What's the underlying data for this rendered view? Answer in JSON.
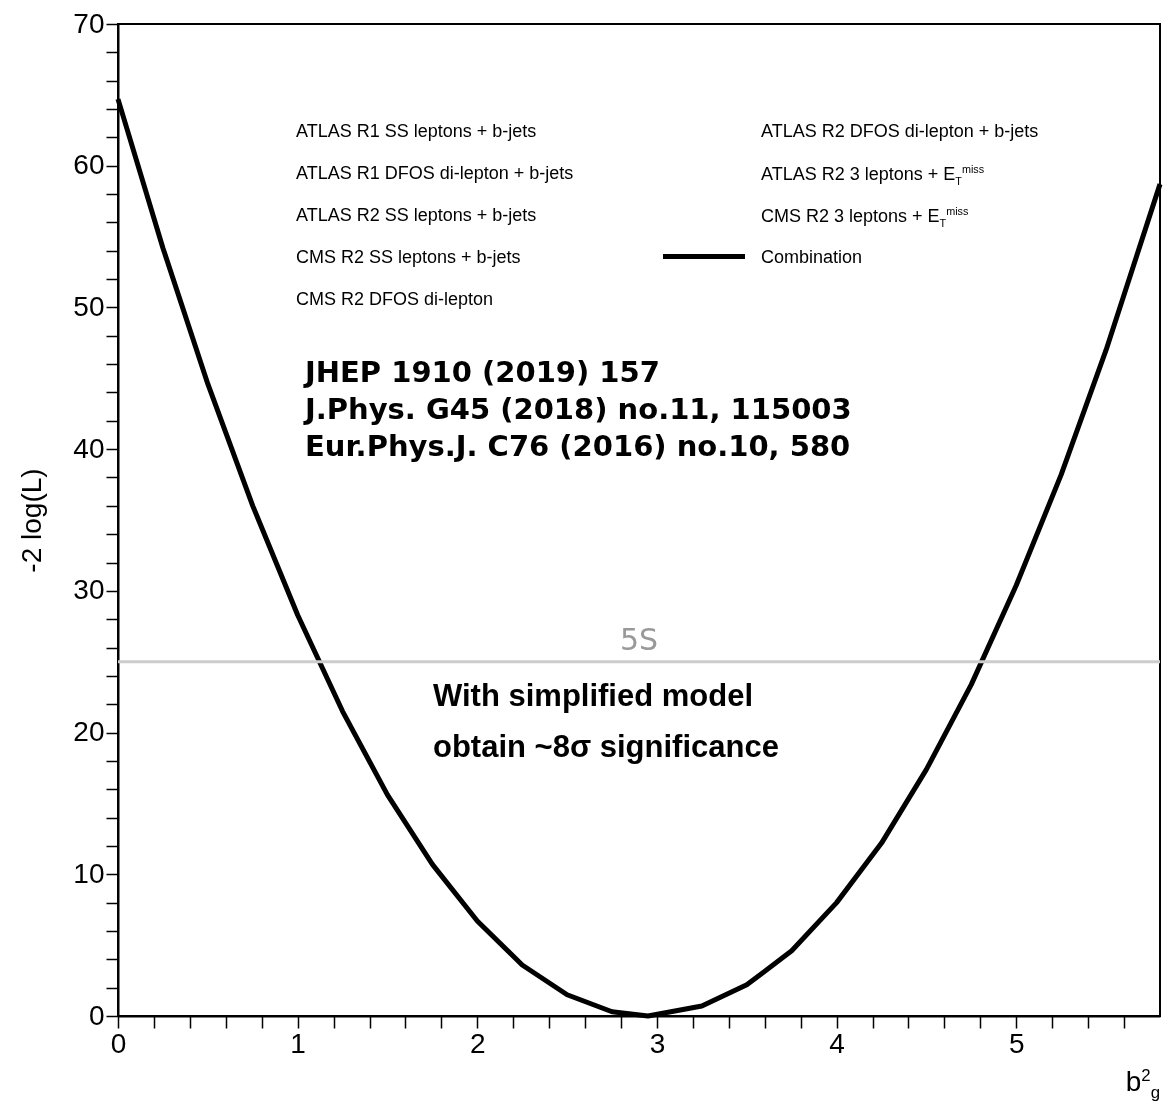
{
  "chart_data": {
    "type": "line",
    "xlabel": "b$^{2}$$_{g}$",
    "ylabel": "-2 log(L)",
    "x": [
      0,
      0.25,
      0.5,
      0.75,
      1,
      1.25,
      1.5,
      1.75,
      2,
      2.25,
      2.5,
      2.75,
      2.95,
      3.25,
      3.5,
      3.75,
      4,
      4.25,
      4.5,
      4.75,
      5,
      5.25,
      5.5,
      5.8
    ],
    "series": [
      {
        "name": "Combination",
        "color": "#000000",
        "values": [
          64.7,
          54.2,
          44.6,
          36.0,
          28.3,
          21.5,
          15.6,
          10.7,
          6.7,
          3.6,
          1.5,
          0.3,
          0,
          0.7,
          2.2,
          4.6,
          8.0,
          12.2,
          17.4,
          23.4,
          30.4,
          38.2,
          47.0,
          58.7
        ]
      }
    ],
    "xlim": [
      0,
      5.8
    ],
    "xticks": [
      0,
      {
        "value": 0.2,
        "label": null
      },
      {
        "value": 0.4,
        "label": null
      },
      {
        "value": 0.6,
        "label": null
      },
      {
        "value": 0.8,
        "label": null
      },
      1,
      {
        "value": 1.2,
        "label": null
      },
      {
        "value": 1.4,
        "label": null
      },
      {
        "value": 1.6,
        "label": null
      },
      {
        "value": 1.8,
        "label": null
      },
      2,
      {
        "value": 2.2,
        "label": null
      },
      {
        "value": 2.4,
        "label": null
      },
      {
        "value": 2.6,
        "label": null
      },
      {
        "value": 2.8,
        "label": null
      },
      3,
      {
        "value": 3.2,
        "label": null
      },
      {
        "value": 3.4,
        "label": null
      },
      {
        "value": 3.6,
        "label": null
      },
      {
        "value": 3.8,
        "label": null
      },
      4,
      {
        "value": 4.2,
        "label": null
      },
      {
        "value": 4.4,
        "label": null
      },
      {
        "value": 4.6,
        "label": null
      },
      {
        "value": 4.8,
        "label": null
      },
      5,
      {
        "value": 5.2,
        "label": null
      },
      {
        "value": 5.4,
        "label": null
      },
      {
        "value": 5.6,
        "label": null
      }
    ],
    "ylim": [
      0,
      70
    ],
    "yticks": [
      0,
      {
        "value": 2,
        "label": null
      },
      {
        "value": 4,
        "label": null
      },
      {
        "value": 6,
        "label": null
      },
      {
        "value": 8,
        "label": null
      },
      10,
      {
        "value": 12,
        "label": null
      },
      {
        "value": 14,
        "label": null
      },
      {
        "value": 16,
        "label": null
      },
      {
        "value": 18,
        "label": null
      },
      20,
      {
        "value": 22,
        "label": null
      },
      {
        "value": 24,
        "label": null
      },
      {
        "value": 26,
        "label": null
      },
      {
        "value": 28,
        "label": null
      },
      30,
      {
        "value": 32,
        "label": null
      },
      {
        "value": 34,
        "label": null
      },
      {
        "value": 36,
        "label": null
      },
      {
        "value": 38,
        "label": null
      },
      40,
      {
        "value": 42,
        "label": null
      },
      {
        "value": 44,
        "label": null
      },
      {
        "value": 46,
        "label": null
      },
      {
        "value": 48,
        "label": null
      },
      50,
      {
        "value": 52,
        "label": null
      },
      {
        "value": 54,
        "label": null
      },
      {
        "value": 56,
        "label": null
      },
      {
        "value": 58,
        "label": null
      },
      60,
      {
        "value": 62,
        "label": null
      },
      {
        "value": 64,
        "label": null
      },
      {
        "value": 66,
        "label": null
      },
      {
        "value": 68,
        "label": null
      },
      70
    ],
    "ref_lines": [
      {
        "axis": "y",
        "value": 25,
        "label": "5S",
        "color": "#cccccc"
      }
    ],
    "legend": "top",
    "annotations": [
      "ATLAS R1 SS leptons + b-jets",
      "ATLAS R1 DFOS di-lepton + b-jets",
      "ATLAS R2 SS leptons + b-jets",
      "CMS R2 SS leptons + b-jets",
      "CMS R2 DFOS di-lepton",
      "ATLAS R2 DFOS di-lepton + b-jets",
      "ATLAS R2 3 leptons + E$_{T}$$^{miss}$",
      "CMS R2 3 leptons + E$_{T}$$^{miss}$",
      "JHEP 1910 (2019) 157",
      "J.Phys. G45 (2018) no.11, 115003",
      "Eur.Phys.J. C76 (2016) no.10, 580",
      "With simplified model",
      "obtain ~8σ significance"
    ]
  }
}
